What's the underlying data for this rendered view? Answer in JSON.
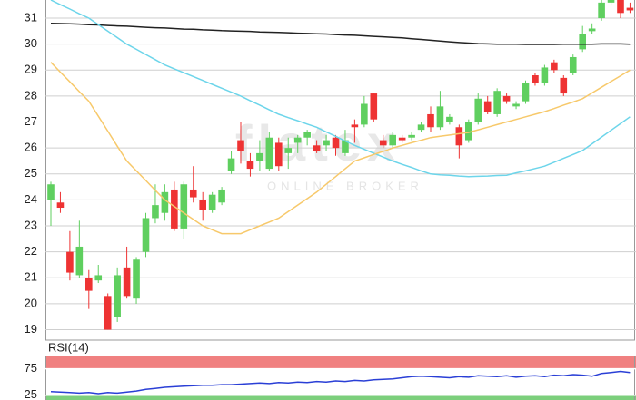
{
  "chart_data": [
    {
      "type": "candlestick",
      "watermark": {
        "logo": "flatex",
        "tagline": "ONLINE BROKER"
      },
      "ylim": [
        18.6,
        31.7
      ],
      "yticks": [
        19,
        20,
        21,
        22,
        23,
        24,
        25,
        26,
        27,
        28,
        29,
        30,
        31
      ],
      "grid": true,
      "up_color": "#5fcf5f",
      "down_color": "#ee3333",
      "open": [
        24.0,
        23.9,
        22.0,
        21.1,
        21.0,
        20.9,
        20.3,
        19.5,
        21.4,
        20.2,
        22.0,
        23.3,
        23.5,
        24.4,
        22.9,
        24.4,
        24.0,
        23.6,
        23.9,
        25.1,
        26.3,
        25.5,
        25.5,
        25.2,
        26.2,
        25.8,
        26.2,
        26.4,
        26.1,
        26.1,
        26.4,
        25.8,
        26.9,
        26.9,
        28.1,
        26.3,
        26.1,
        26.4,
        26.4,
        26.7,
        27.3,
        26.8,
        27.0,
        26.8,
        26.3,
        27.0,
        27.8,
        27.3,
        28.0,
        27.6,
        27.8,
        28.8,
        28.5,
        29.3,
        28.7,
        28.9,
        29.8,
        30.5,
        31.0,
        31.6,
        31.7,
        31.4
      ],
      "high": [
        24.7,
        24.3,
        22.8,
        23.2,
        21.3,
        21.5,
        20.4,
        21.4,
        22.2,
        21.8,
        23.5,
        24.6,
        24.6,
        24.7,
        24.7,
        25.3,
        24.3,
        24.3,
        24.5,
        25.9,
        27.0,
        25.8,
        26.3,
        26.6,
        26.4,
        26.4,
        26.5,
        26.7,
        26.3,
        26.5,
        26.5,
        26.7,
        27.1,
        28.0,
        28.1,
        26.5,
        26.6,
        26.5,
        26.6,
        27.0,
        27.6,
        28.2,
        27.3,
        26.9,
        27.1,
        28.1,
        28.0,
        28.3,
        28.1,
        27.8,
        28.6,
        28.9,
        29.2,
        29.4,
        28.8,
        29.6,
        30.7,
        30.8,
        31.7,
        31.7,
        31.7,
        31.6
      ],
      "low": [
        23.0,
        23.5,
        20.9,
        21.0,
        19.8,
        20.8,
        19.0,
        19.3,
        20.2,
        20.0,
        21.8,
        23.1,
        23.2,
        22.8,
        22.5,
        23.9,
        23.2,
        23.5,
        23.8,
        25.0,
        25.4,
        24.9,
        25.1,
        25.1,
        25.1,
        25.2,
        25.8,
        26.1,
        25.8,
        25.9,
        25.7,
        25.7,
        26.2,
        26.8,
        27.0,
        26.0,
        26.0,
        26.2,
        26.3,
        26.6,
        26.6,
        26.7,
        26.9,
        25.6,
        26.2,
        26.9,
        27.3,
        27.2,
        27.7,
        27.5,
        27.7,
        28.4,
        28.4,
        28.9,
        28.0,
        28.8,
        29.7,
        30.4,
        30.9,
        31.5,
        31.0,
        31.2
      ],
      "close": [
        24.6,
        23.7,
        21.2,
        22.2,
        20.5,
        21.1,
        19.0,
        21.1,
        20.3,
        21.7,
        23.3,
        23.8,
        24.3,
        22.9,
        24.6,
        24.1,
        23.6,
        24.2,
        24.4,
        25.6,
        25.9,
        25.2,
        25.8,
        26.4,
        25.3,
        26.0,
        26.4,
        26.6,
        25.9,
        26.3,
        26.0,
        26.3,
        26.8,
        27.7,
        27.1,
        26.1,
        26.5,
        26.3,
        26.5,
        26.9,
        26.8,
        27.6,
        27.2,
        26.1,
        27.0,
        27.9,
        27.4,
        28.2,
        27.8,
        27.7,
        28.5,
        28.5,
        29.1,
        29.0,
        28.1,
        29.5,
        30.4,
        30.6,
        31.6,
        31.7,
        31.2,
        31.3
      ],
      "series": [
        {
          "color": "#222222",
          "values": [
            30.8,
            30.79,
            30.78,
            30.77,
            30.75,
            30.74,
            30.72,
            30.7,
            30.69,
            30.67,
            30.65,
            30.63,
            30.62,
            30.6,
            30.58,
            30.57,
            30.55,
            30.54,
            30.52,
            30.51,
            30.5,
            30.49,
            30.47,
            30.46,
            30.45,
            30.44,
            30.42,
            30.41,
            30.4,
            30.39,
            30.37,
            30.35,
            30.34,
            30.32,
            30.3,
            30.28,
            30.26,
            30.24,
            30.21,
            30.18,
            30.15,
            30.12,
            30.09,
            30.06,
            30.04,
            30.02,
            30.01,
            30.0,
            30.0,
            30.0,
            29.99,
            29.99,
            29.99,
            29.99,
            30.0,
            30.0,
            30.0,
            30.0,
            30.01,
            30.01,
            30.01,
            30.0
          ]
        },
        {
          "color": "#6dd5ea",
          "values": [
            31.7,
            31.52,
            31.35,
            31.17,
            31.0,
            30.75,
            30.5,
            30.25,
            30.0,
            29.8,
            29.6,
            29.4,
            29.2,
            29.05,
            28.9,
            28.75,
            28.6,
            28.45,
            28.3,
            28.15,
            28.0,
            27.82,
            27.65,
            27.47,
            27.3,
            27.17,
            27.05,
            26.92,
            26.8,
            26.62,
            26.45,
            26.27,
            26.1,
            25.95,
            25.8,
            25.65,
            25.5,
            25.37,
            25.25,
            25.12,
            25.0,
            24.97,
            24.95,
            24.92,
            24.9,
            24.91,
            24.92,
            24.94,
            24.95,
            25.04,
            25.12,
            25.21,
            25.3,
            25.45,
            25.6,
            25.75,
            25.9,
            26.16,
            26.42,
            26.68,
            26.94,
            27.2
          ]
        },
        {
          "color": "#f7c96b",
          "values": [
            29.3,
            28.92,
            28.55,
            28.17,
            27.8,
            27.22,
            26.65,
            26.07,
            25.5,
            25.12,
            24.75,
            24.37,
            24.0,
            23.75,
            23.5,
            23.25,
            23.0,
            22.85,
            22.7,
            22.7,
            22.7,
            22.85,
            23.0,
            23.15,
            23.3,
            23.55,
            23.8,
            24.05,
            24.3,
            24.6,
            24.9,
            25.2,
            25.5,
            25.62,
            25.75,
            25.87,
            26.0,
            26.1,
            26.2,
            26.3,
            26.4,
            26.45,
            26.5,
            26.55,
            26.6,
            26.7,
            26.8,
            26.9,
            27.0,
            27.1,
            27.2,
            27.3,
            27.4,
            27.52,
            27.65,
            27.77,
            27.9,
            28.12,
            28.34,
            28.56,
            28.78,
            29.0
          ]
        }
      ]
    },
    {
      "type": "line",
      "title": "RSI(14)",
      "ylim": [
        16,
        100
      ],
      "yticks": [
        25,
        75
      ],
      "bands": [
        {
          "range": [
            75,
            100
          ],
          "color": "#f08080"
        },
        {
          "range": [
            0,
            25
          ],
          "color": "#7ccf7c"
        }
      ],
      "series": [
        {
          "color": "#2a3fd6",
          "values": [
            32,
            31,
            30,
            29,
            30,
            28,
            30,
            29,
            31,
            33,
            36,
            38,
            40,
            41,
            42,
            43,
            44,
            44,
            45,
            45,
            46,
            47,
            48,
            47,
            49,
            48,
            50,
            49,
            51,
            50,
            52,
            51,
            53,
            52,
            54,
            55,
            56,
            58,
            60,
            61,
            60,
            59,
            58,
            60,
            59,
            62,
            61,
            60,
            62,
            59,
            61,
            62,
            60,
            63,
            62,
            64,
            63,
            61,
            66,
            68,
            70,
            68
          ]
        }
      ]
    }
  ]
}
